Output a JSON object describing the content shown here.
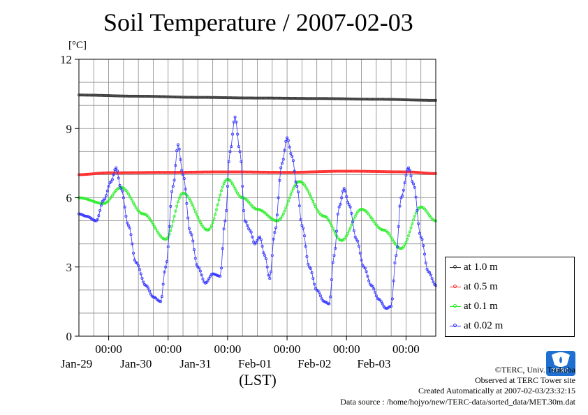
{
  "title": "Soil Temperature / 2007-02-03",
  "unit_label": "[°C]",
  "x_axis_label": "(LST)",
  "legend": [
    {
      "label": "at 1.0 m",
      "color": "#3a3a3a"
    },
    {
      "label": "at 0.5 m",
      "color": "#ff2a2a"
    },
    {
      "label": "at 0.1 m",
      "color": "#2aee2a"
    },
    {
      "label": "at 0.02 m",
      "color": "#3232ff"
    }
  ],
  "credits": {
    "copyright": "©TERC, Univ. Tsukuba",
    "observed": "Observed at TERC Tower site",
    "created": "Created Automatically at 2007-02-03/23:32:15",
    "source": "Data source : /home/hojyo/new/TERC-data/sorted_data/MET.30m.dat"
  },
  "logo_text": "TERC",
  "chart_data": {
    "type": "line",
    "title": "Soil Temperature / 2007-02-03",
    "ylabel": "[°C]",
    "xlabel": "(LST)",
    "x_unit": "hours since 2007-01-28 12:00",
    "xlim": [
      0,
      144
    ],
    "ylim": [
      0,
      12
    ],
    "y_ticks": [
      0,
      3,
      6,
      9,
      12
    ],
    "x_ticks": [
      {
        "x": 12,
        "time": "00:00",
        "date": "Jan-29"
      },
      {
        "x": 36,
        "time": "00:00",
        "date": "Jan-30"
      },
      {
        "x": 60,
        "time": "00:00",
        "date": "Jan-31"
      },
      {
        "x": 84,
        "time": "00:00",
        "date": "Feb-01"
      },
      {
        "x": 108,
        "time": "00:00",
        "date": "Feb-02"
      },
      {
        "x": 132,
        "time": "00:00",
        "date": "Feb-03"
      }
    ],
    "grid": true,
    "legend_position": "right",
    "series": [
      {
        "name": "at 1.0 m",
        "color": "#3a3a3a",
        "points": [
          [
            0,
            10.45
          ],
          [
            24,
            10.4
          ],
          [
            48,
            10.35
          ],
          [
            72,
            10.32
          ],
          [
            96,
            10.3
          ],
          [
            120,
            10.27
          ],
          [
            144,
            10.22
          ]
        ]
      },
      {
        "name": "at 0.5 m",
        "color": "#ff2a2a",
        "points": [
          [
            0,
            7.0
          ],
          [
            12,
            7.08
          ],
          [
            36,
            7.1
          ],
          [
            60,
            7.12
          ],
          [
            84,
            7.1
          ],
          [
            108,
            7.15
          ],
          [
            132,
            7.12
          ],
          [
            144,
            7.05
          ]
        ]
      },
      {
        "name": "at 0.1 m",
        "color": "#2aee2a",
        "points": [
          [
            0,
            6.0
          ],
          [
            10,
            5.75
          ],
          [
            17,
            6.45
          ],
          [
            26,
            5.3
          ],
          [
            35,
            4.2
          ],
          [
            42,
            6.2
          ],
          [
            52,
            4.6
          ],
          [
            60,
            6.8
          ],
          [
            66,
            6.0
          ],
          [
            72,
            5.5
          ],
          [
            80,
            5.0
          ],
          [
            89,
            6.7
          ],
          [
            99,
            5.2
          ],
          [
            106,
            4.15
          ],
          [
            114,
            5.5
          ],
          [
            123,
            4.6
          ],
          [
            130,
            3.8
          ],
          [
            138,
            5.6
          ],
          [
            144,
            5.0
          ]
        ]
      },
      {
        "name": "at 0.02 m",
        "color": "#3232ff",
        "points": [
          [
            0,
            5.3
          ],
          [
            3,
            5.2
          ],
          [
            7,
            5.0
          ],
          [
            10,
            5.9
          ],
          [
            13,
            6.7
          ],
          [
            15,
            7.3
          ],
          [
            17,
            6.4
          ],
          [
            20,
            4.8
          ],
          [
            23,
            3.2
          ],
          [
            27,
            2.2
          ],
          [
            30,
            1.7
          ],
          [
            33,
            1.5
          ],
          [
            35,
            3.0
          ],
          [
            38,
            6.5
          ],
          [
            40,
            8.3
          ],
          [
            42,
            7.0
          ],
          [
            45,
            4.5
          ],
          [
            48,
            3.0
          ],
          [
            51,
            2.3
          ],
          [
            54,
            2.7
          ],
          [
            57,
            2.6
          ],
          [
            59,
            5.0
          ],
          [
            61,
            8.0
          ],
          [
            63,
            9.5
          ],
          [
            65,
            8.0
          ],
          [
            67,
            5.0
          ],
          [
            69,
            4.6
          ],
          [
            71,
            4.0
          ],
          [
            73,
            4.3
          ],
          [
            75,
            3.5
          ],
          [
            77,
            2.5
          ],
          [
            79,
            4.5
          ],
          [
            82,
            7.5
          ],
          [
            84,
            8.6
          ],
          [
            86,
            7.8
          ],
          [
            88,
            6.5
          ],
          [
            90,
            4.8
          ],
          [
            93,
            3.0
          ],
          [
            96,
            2.0
          ],
          [
            99,
            1.5
          ],
          [
            101,
            1.4
          ],
          [
            103,
            3.5
          ],
          [
            105,
            5.6
          ],
          [
            107,
            6.4
          ],
          [
            109,
            5.7
          ],
          [
            112,
            4.2
          ],
          [
            115,
            3.0
          ],
          [
            118,
            2.2
          ],
          [
            121,
            1.6
          ],
          [
            124,
            1.2
          ],
          [
            126,
            1.3
          ],
          [
            128,
            3.5
          ],
          [
            130,
            6.0
          ],
          [
            133,
            7.3
          ],
          [
            135,
            6.6
          ],
          [
            138,
            4.3
          ],
          [
            141,
            2.8
          ],
          [
            144,
            2.2
          ]
        ]
      }
    ]
  }
}
